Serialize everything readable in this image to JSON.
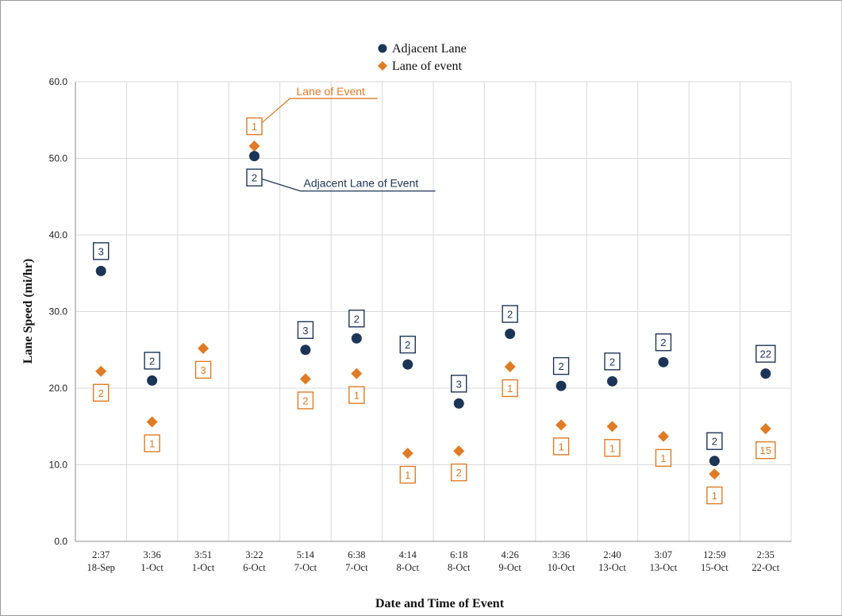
{
  "chart_data": {
    "type": "scatter",
    "xlabel": "Date and Time of Event",
    "ylabel": "Lane Speed (mi/hr)",
    "ylim": [
      0,
      60
    ],
    "yticks": [
      "0.0",
      "10.0",
      "20.0",
      "30.0",
      "40.0",
      "50.0",
      "60.0"
    ],
    "grid": true,
    "legend_position": "top-center",
    "categories": [
      [
        "2:37",
        "18-Sep"
      ],
      [
        "3:36",
        "1-Oct"
      ],
      [
        "3:51",
        "1-Oct"
      ],
      [
        "3:22",
        "6-Oct"
      ],
      [
        "5:14",
        "7-Oct"
      ],
      [
        "6:38",
        "7-Oct"
      ],
      [
        "4:14",
        "8-Oct"
      ],
      [
        "6:18",
        "8-Oct"
      ],
      [
        "4:26",
        "9-Oct"
      ],
      [
        "3:36",
        "10-Oct"
      ],
      [
        "2:40",
        "13-Oct"
      ],
      [
        "3:07",
        "13-Oct"
      ],
      [
        "12:59",
        "15-Oct"
      ],
      [
        "2:35",
        "22-Oct"
      ]
    ],
    "series": [
      {
        "name": "Adjacent Lane",
        "color": "#1c3557",
        "marker": "circle",
        "values": [
          35.3,
          21.0,
          null,
          50.3,
          25.0,
          26.5,
          23.1,
          18.0,
          27.1,
          20.3,
          20.9,
          23.4,
          10.5,
          21.9
        ],
        "labels": [
          "3",
          "2",
          null,
          "2",
          "3",
          "2",
          "2",
          "3",
          "2",
          "2",
          "2",
          "2",
          "2",
          "22"
        ]
      },
      {
        "name": "Lane of event",
        "color": "#e07b24",
        "marker": "diamond",
        "values": [
          22.2,
          15.6,
          25.2,
          51.6,
          21.2,
          21.9,
          11.5,
          11.8,
          22.8,
          15.2,
          15.0,
          13.7,
          8.8,
          14.7
        ],
        "labels": [
          "2",
          "1",
          "3",
          "1",
          "2",
          "1",
          "1",
          "2",
          "1",
          "1",
          "1",
          "1",
          "1",
          "15"
        ]
      }
    ],
    "annotations": [
      {
        "text": "Lane of Event",
        "color": "#e07b24"
      },
      {
        "text": "Adjacent Lane of Event",
        "color": "#1c3557"
      }
    ]
  }
}
